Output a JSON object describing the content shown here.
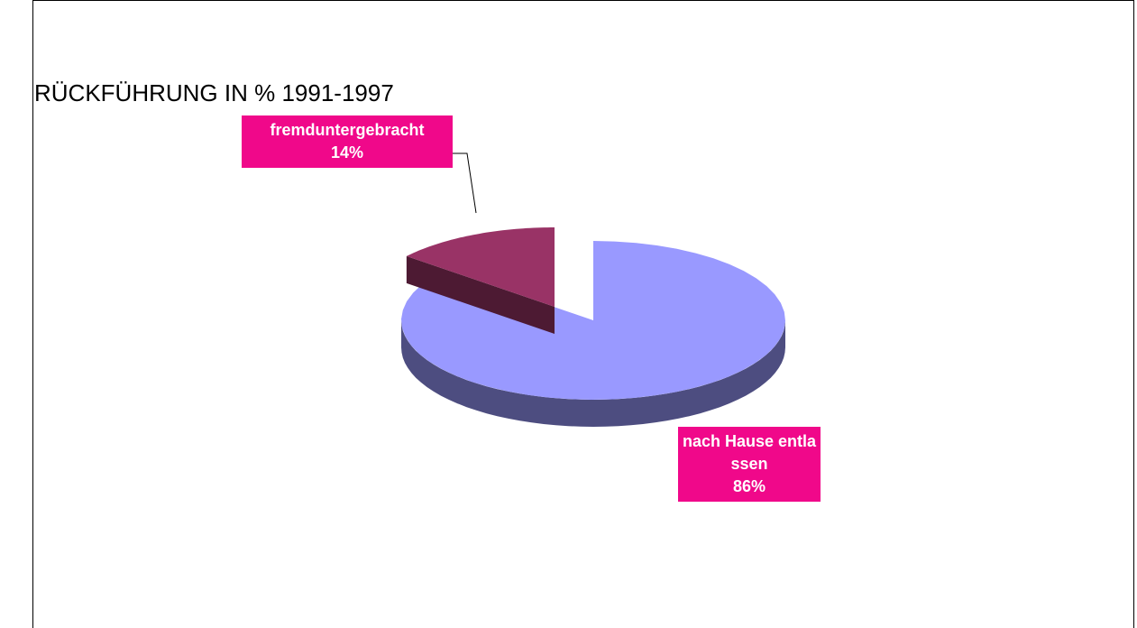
{
  "chart_data": {
    "type": "pie",
    "title": "RÜCKFÜHRUNG IN % 1991-1997",
    "categories": [
      "nach Hause entlassen",
      "fremduntergebracht"
    ],
    "values": [
      86,
      14
    ],
    "value_labels": [
      "86%",
      "14%"
    ],
    "colors": [
      "#9999ff",
      "#993366"
    ],
    "label_color": "#f0088a",
    "exploded": [
      false,
      true
    ]
  }
}
